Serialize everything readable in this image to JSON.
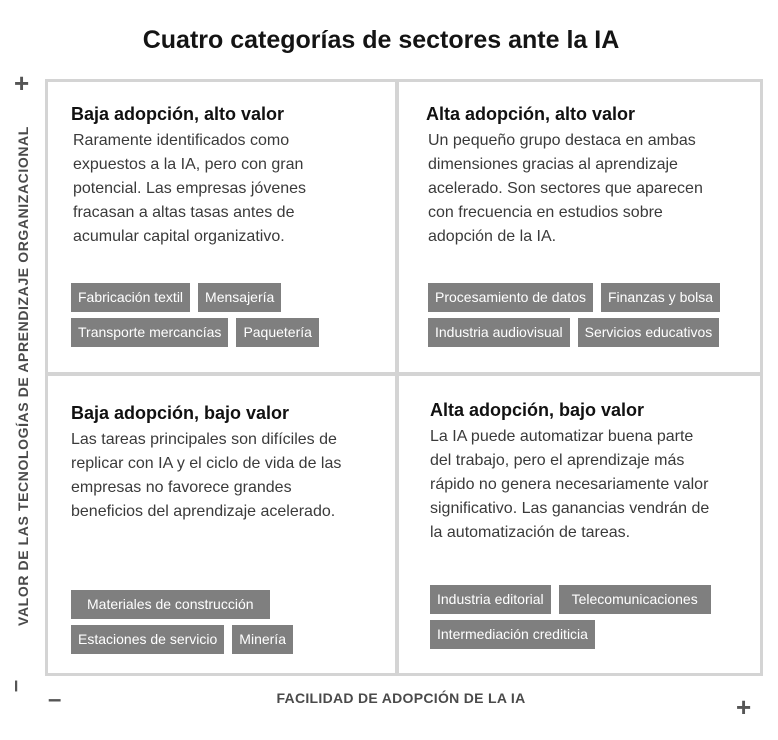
{
  "title": "Cuatro categorías de sectores ante la IA",
  "axes": {
    "y_label": "VALOR DE LAS TECNOLOGÍAS DE APRENDIZAJE ORGANIZACIONAL",
    "x_label": "FACILIDAD DE ADOPCIÓN DE LA IA",
    "plus": "+",
    "minus": "–"
  },
  "quadrants": {
    "top_left": {
      "title": "Baja adopción, alto valor",
      "description": "Raramente identificados como expuestos a la IA, pero con gran potencial. Las empresas jóvenes fracasan a altas tasas antes de acumular capital organizativo.",
      "tags": [
        "Fabricación textil",
        "Mensajería",
        "Transporte mercancías",
        "Paquetería"
      ]
    },
    "top_right": {
      "title": "Alta adopción, alto valor",
      "description": "Un pequeño grupo destaca en ambas dimensiones gracias al aprendizaje acelerado. Son sectores que aparecen con frecuencia en estudios sobre adopción de la IA.",
      "tags": [
        "Procesamiento de datos",
        "Finanzas y bolsa",
        "Industria audiovisual",
        "Servicios educativos"
      ]
    },
    "bottom_left": {
      "title": "Baja adopción, bajo valor",
      "description": "Las tareas principales son difíciles de replicar con IA y el ciclo de vida de las empresas no favorece grandes beneficios del aprendizaje acelerado.",
      "tags": [
        "Materiales de construcción",
        "Estaciones de servicio",
        "Minería"
      ]
    },
    "bottom_right": {
      "title": "Alta adopción, bajo valor",
      "description": "La IA puede automatizar buena parte del trabajo, pero el aprendizaje más rápido no genera necesariamente valor significativo. Las ganancias vendrán de la automatización de tareas.",
      "tags": [
        "Industria editorial",
        "Telecomunicaciones",
        "Intermediación crediticia"
      ]
    }
  }
}
